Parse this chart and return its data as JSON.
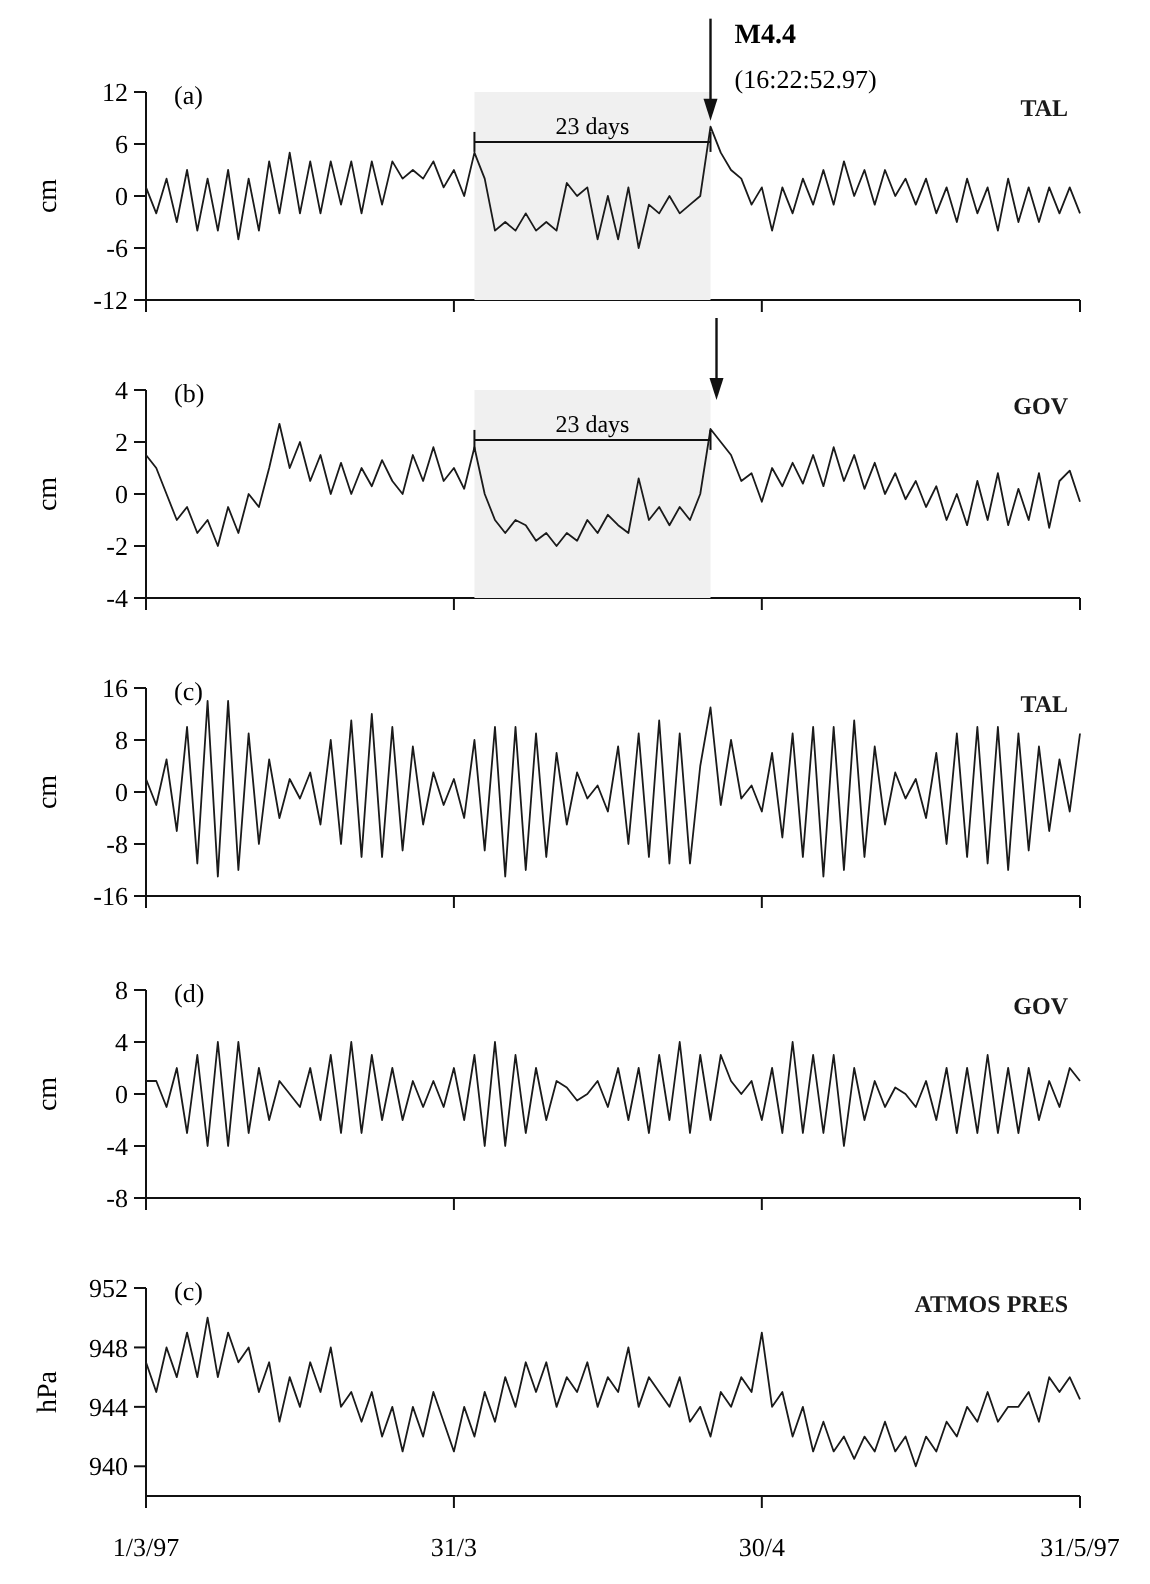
{
  "chart_data": [
    {
      "type": "line",
      "title": "(a)",
      "ylabel": "cm",
      "xlim": [
        "1997-03-01",
        "1997-05-31"
      ],
      "ylim": [
        -12,
        12
      ],
      "yticks": [
        -12,
        -6,
        0,
        6,
        12
      ],
      "tick_labels": "y",
      "legend": "top right",
      "x": [
        "1997-03-01",
        "1997-03-02",
        "1997-03-03",
        "1997-03-04",
        "1997-03-05",
        "1997-03-06",
        "1997-03-07",
        "1997-03-08",
        "1997-03-09",
        "1997-03-10",
        "1997-03-11",
        "1997-03-12",
        "1997-03-13",
        "1997-03-14",
        "1997-03-15",
        "1997-03-16",
        "1997-03-17",
        "1997-03-18",
        "1997-03-19",
        "1997-03-20",
        "1997-03-21",
        "1997-03-22",
        "1997-03-23",
        "1997-03-24",
        "1997-03-25",
        "1997-03-26",
        "1997-03-27",
        "1997-03-28",
        "1997-03-29",
        "1997-03-30",
        "1997-03-31",
        "1997-04-01",
        "1997-04-02",
        "1997-04-03",
        "1997-04-04",
        "1997-04-05",
        "1997-04-06",
        "1997-04-07",
        "1997-04-08",
        "1997-04-09",
        "1997-04-10",
        "1997-04-11",
        "1997-04-12",
        "1997-04-13",
        "1997-04-14",
        "1997-04-15",
        "1997-04-16",
        "1997-04-17",
        "1997-04-18",
        "1997-04-19",
        "1997-04-20",
        "1997-04-21",
        "1997-04-22",
        "1997-04-23",
        "1997-04-24",
        "1997-04-25",
        "1997-04-26",
        "1997-04-27",
        "1997-04-28",
        "1997-04-29",
        "1997-04-30",
        "1997-05-01",
        "1997-05-02",
        "1997-05-03",
        "1997-05-04",
        "1997-05-05",
        "1997-05-06",
        "1997-05-07",
        "1997-05-08",
        "1997-05-09",
        "1997-05-10",
        "1997-05-11",
        "1997-05-12",
        "1997-05-13",
        "1997-05-14",
        "1997-05-15",
        "1997-05-16",
        "1997-05-17",
        "1997-05-18",
        "1997-05-19",
        "1997-05-20",
        "1997-05-21",
        "1997-05-22",
        "1997-05-23",
        "1997-05-24",
        "1997-05-25",
        "1997-05-26",
        "1997-05-27",
        "1997-05-28",
        "1997-05-29",
        "1997-05-30",
        "1997-05-31"
      ],
      "xticks": [
        {
          "value": "1997-03-01",
          "label": null
        },
        {
          "value": "1997-03-31",
          "label": null
        },
        {
          "value": "1997-04-30",
          "label": null
        },
        {
          "value": "1997-05-31",
          "label": null
        }
      ],
      "annotations": [
        {
          "text": "M4.4",
          "x": "1997-04-25",
          "y": 8
        },
        "(16:22:52.97)"
      ],
      "bands": [
        {
          "axis": "x",
          "from": "1997-04-02",
          "to": "1997-04-25",
          "label": "23 days",
          "color": "#f0f0f0"
        }
      ],
      "series": [
        {
          "name": "TAL",
          "color": "#1a1a1a",
          "values": [
            1,
            -2,
            2,
            -3,
            3,
            -4,
            2,
            -4,
            3,
            -5,
            2,
            -4,
            4,
            -2,
            5,
            -2,
            4,
            -2,
            4,
            -1,
            4,
            -2,
            4,
            -1,
            4,
            2,
            3,
            2,
            4,
            1,
            3,
            0,
            5,
            2,
            -4,
            -3,
            -4,
            -2,
            -4,
            -3,
            -4,
            1.5,
            0,
            1,
            -5,
            0,
            -5,
            1,
            -6,
            -1,
            -2,
            0,
            -2,
            -1,
            0,
            8,
            5,
            3,
            2,
            -1,
            1,
            -4,
            1,
            -2,
            2,
            -1,
            3,
            -1,
            4,
            0,
            3,
            -1,
            3,
            0,
            2,
            -1,
            2,
            -2,
            1,
            -3,
            2,
            -2,
            1,
            -4,
            2,
            -3,
            1,
            -3,
            1,
            -2,
            1,
            -2
          ]
        }
      ]
    },
    {
      "type": "line",
      "title": "(b)",
      "ylabel": "cm",
      "xlim": [
        "1997-03-01",
        "1997-05-31"
      ],
      "ylim": [
        -4,
        4
      ],
      "yticks": [
        -4,
        -2,
        0,
        2,
        4
      ],
      "tick_labels": "y",
      "legend": "top right",
      "x": [
        "1997-03-01",
        "1997-03-02",
        "1997-03-03",
        "1997-03-04",
        "1997-03-05",
        "1997-03-06",
        "1997-03-07",
        "1997-03-08",
        "1997-03-09",
        "1997-03-10",
        "1997-03-11",
        "1997-03-12",
        "1997-03-13",
        "1997-03-14",
        "1997-03-15",
        "1997-03-16",
        "1997-03-17",
        "1997-03-18",
        "1997-03-19",
        "1997-03-20",
        "1997-03-21",
        "1997-03-22",
        "1997-03-23",
        "1997-03-24",
        "1997-03-25",
        "1997-03-26",
        "1997-03-27",
        "1997-03-28",
        "1997-03-29",
        "1997-03-30",
        "1997-03-31",
        "1997-04-01",
        "1997-04-02",
        "1997-04-03",
        "1997-04-04",
        "1997-04-05",
        "1997-04-06",
        "1997-04-07",
        "1997-04-08",
        "1997-04-09",
        "1997-04-10",
        "1997-04-11",
        "1997-04-12",
        "1997-04-13",
        "1997-04-14",
        "1997-04-15",
        "1997-04-16",
        "1997-04-17",
        "1997-04-18",
        "1997-04-19",
        "1997-04-20",
        "1997-04-21",
        "1997-04-22",
        "1997-04-23",
        "1997-04-24",
        "1997-04-25",
        "1997-04-26",
        "1997-04-27",
        "1997-04-28",
        "1997-04-29",
        "1997-04-30",
        "1997-05-01",
        "1997-05-02",
        "1997-05-03",
        "1997-05-04",
        "1997-05-05",
        "1997-05-06",
        "1997-05-07",
        "1997-05-08",
        "1997-05-09",
        "1997-05-10",
        "1997-05-11",
        "1997-05-12",
        "1997-05-13",
        "1997-05-14",
        "1997-05-15",
        "1997-05-16",
        "1997-05-17",
        "1997-05-18",
        "1997-05-19",
        "1997-05-20",
        "1997-05-21",
        "1997-05-22",
        "1997-05-23",
        "1997-05-24",
        "1997-05-25",
        "1997-05-26",
        "1997-05-27",
        "1997-05-28",
        "1997-05-29",
        "1997-05-30",
        "1997-05-31"
      ],
      "xticks": [
        {
          "value": "1997-03-01",
          "label": null
        },
        {
          "value": "1997-03-31",
          "label": null
        },
        {
          "value": "1997-04-30",
          "label": null
        },
        {
          "value": "1997-05-31",
          "label": null
        }
      ],
      "bands": [
        {
          "axis": "x",
          "from": "1997-04-02",
          "to": "1997-04-25",
          "label": "23 days",
          "color": "#f0f0f0"
        }
      ],
      "series": [
        {
          "name": "GOV",
          "color": "#1a1a1a",
          "values": [
            1.5,
            1,
            0,
            -1,
            -0.5,
            -1.5,
            -1,
            -2,
            -0.5,
            -1.5,
            0,
            -0.5,
            1,
            2.7,
            1,
            2,
            0.5,
            1.5,
            0,
            1.2,
            0,
            1,
            0.3,
            1.3,
            0.5,
            0,
            1.5,
            0.5,
            1.8,
            0.5,
            1,
            0.2,
            1.8,
            0,
            -1,
            -1.5,
            -1,
            -1.2,
            -1.8,
            -1.5,
            -2,
            -1.5,
            -1.8,
            -1,
            -1.5,
            -0.8,
            -1.2,
            -1.5,
            0.6,
            -1,
            -0.5,
            -1.2,
            -0.5,
            -1,
            0,
            2.5,
            2,
            1.5,
            0.5,
            0.8,
            -0.3,
            1,
            0.3,
            1.2,
            0.4,
            1.5,
            0.3,
            1.8,
            0.5,
            1.5,
            0.2,
            1.2,
            0,
            0.8,
            -0.2,
            0.5,
            -0.5,
            0.3,
            -1,
            0,
            -1.2,
            0.5,
            -1,
            0.8,
            -1.2,
            0.2,
            -1,
            0.8,
            -1.3,
            0.5,
            0.9,
            -0.3
          ]
        }
      ]
    },
    {
      "type": "line",
      "title": "(c)",
      "ylabel": "cm",
      "xlim": [
        "1997-03-01",
        "1997-05-31"
      ],
      "ylim": [
        -16,
        16
      ],
      "yticks": [
        -16,
        -8,
        0,
        8,
        16
      ],
      "tick_labels": "y",
      "legend": "top right",
      "x": [
        "1997-03-01",
        "1997-03-02",
        "1997-03-03",
        "1997-03-04",
        "1997-03-05",
        "1997-03-06",
        "1997-03-07",
        "1997-03-08",
        "1997-03-09",
        "1997-03-10",
        "1997-03-11",
        "1997-03-12",
        "1997-03-13",
        "1997-03-14",
        "1997-03-15",
        "1997-03-16",
        "1997-03-17",
        "1997-03-18",
        "1997-03-19",
        "1997-03-20",
        "1997-03-21",
        "1997-03-22",
        "1997-03-23",
        "1997-03-24",
        "1997-03-25",
        "1997-03-26",
        "1997-03-27",
        "1997-03-28",
        "1997-03-29",
        "1997-03-30",
        "1997-03-31",
        "1997-04-01",
        "1997-04-02",
        "1997-04-03",
        "1997-04-04",
        "1997-04-05",
        "1997-04-06",
        "1997-04-07",
        "1997-04-08",
        "1997-04-09",
        "1997-04-10",
        "1997-04-11",
        "1997-04-12",
        "1997-04-13",
        "1997-04-14",
        "1997-04-15",
        "1997-04-16",
        "1997-04-17",
        "1997-04-18",
        "1997-04-19",
        "1997-04-20",
        "1997-04-21",
        "1997-04-22",
        "1997-04-23",
        "1997-04-24",
        "1997-04-25",
        "1997-04-26",
        "1997-04-27",
        "1997-04-28",
        "1997-04-29",
        "1997-04-30",
        "1997-05-01",
        "1997-05-02",
        "1997-05-03",
        "1997-05-04",
        "1997-05-05",
        "1997-05-06",
        "1997-05-07",
        "1997-05-08",
        "1997-05-09",
        "1997-05-10",
        "1997-05-11",
        "1997-05-12",
        "1997-05-13",
        "1997-05-14",
        "1997-05-15",
        "1997-05-16",
        "1997-05-17",
        "1997-05-18",
        "1997-05-19",
        "1997-05-20",
        "1997-05-21",
        "1997-05-22",
        "1997-05-23",
        "1997-05-24",
        "1997-05-25",
        "1997-05-26",
        "1997-05-27",
        "1997-05-28",
        "1997-05-29",
        "1997-05-30",
        "1997-05-31"
      ],
      "xticks": [
        {
          "value": "1997-03-01",
          "label": null
        },
        {
          "value": "1997-03-31",
          "label": null
        },
        {
          "value": "1997-04-30",
          "label": null
        },
        {
          "value": "1997-05-31",
          "label": null
        }
      ],
      "series": [
        {
          "name": "TAL",
          "color": "#1a1a1a",
          "values": [
            2,
            -2,
            5,
            -6,
            10,
            -11,
            14,
            -13,
            14,
            -12,
            9,
            -8,
            5,
            -4,
            2,
            -1,
            3,
            -5,
            8,
            -8,
            11,
            -10,
            12,
            -10,
            10,
            -9,
            7,
            -5,
            3,
            -2,
            2,
            -4,
            8,
            -9,
            10,
            -13,
            10,
            -12,
            9,
            -10,
            6,
            -5,
            3,
            -1,
            1,
            -3,
            7,
            -8,
            9,
            -10,
            11,
            -11,
            9,
            -11,
            4,
            13,
            -2,
            8,
            -1,
            1,
            -3,
            6,
            -7,
            9,
            -10,
            10,
            -13,
            10,
            -12,
            11,
            -10,
            7,
            -5,
            3,
            -1,
            2,
            -4,
            6,
            -8,
            9,
            -10,
            10,
            -11,
            10,
            -12,
            9,
            -9,
            7,
            -6,
            5,
            -3,
            9
          ]
        }
      ]
    },
    {
      "type": "line",
      "title": "(d)",
      "ylabel": "cm",
      "xlim": [
        "1997-03-01",
        "1997-05-31"
      ],
      "ylim": [
        -8,
        8
      ],
      "yticks": [
        -8,
        -4,
        0,
        4,
        8
      ],
      "tick_labels": "y",
      "legend": "top right",
      "x": [
        "1997-03-01",
        "1997-03-02",
        "1997-03-03",
        "1997-03-04",
        "1997-03-05",
        "1997-03-06",
        "1997-03-07",
        "1997-03-08",
        "1997-03-09",
        "1997-03-10",
        "1997-03-11",
        "1997-03-12",
        "1997-03-13",
        "1997-03-14",
        "1997-03-15",
        "1997-03-16",
        "1997-03-17",
        "1997-03-18",
        "1997-03-19",
        "1997-03-20",
        "1997-03-21",
        "1997-03-22",
        "1997-03-23",
        "1997-03-24",
        "1997-03-25",
        "1997-03-26",
        "1997-03-27",
        "1997-03-28",
        "1997-03-29",
        "1997-03-30",
        "1997-03-31",
        "1997-04-01",
        "1997-04-02",
        "1997-04-03",
        "1997-04-04",
        "1997-04-05",
        "1997-04-06",
        "1997-04-07",
        "1997-04-08",
        "1997-04-09",
        "1997-04-10",
        "1997-04-11",
        "1997-04-12",
        "1997-04-13",
        "1997-04-14",
        "1997-04-15",
        "1997-04-16",
        "1997-04-17",
        "1997-04-18",
        "1997-04-19",
        "1997-04-20",
        "1997-04-21",
        "1997-04-22",
        "1997-04-23",
        "1997-04-24",
        "1997-04-25",
        "1997-04-26",
        "1997-04-27",
        "1997-04-28",
        "1997-04-29",
        "1997-04-30",
        "1997-05-01",
        "1997-05-02",
        "1997-05-03",
        "1997-05-04",
        "1997-05-05",
        "1997-05-06",
        "1997-05-07",
        "1997-05-08",
        "1997-05-09",
        "1997-05-10",
        "1997-05-11",
        "1997-05-12",
        "1997-05-13",
        "1997-05-14",
        "1997-05-15",
        "1997-05-16",
        "1997-05-17",
        "1997-05-18",
        "1997-05-19",
        "1997-05-20",
        "1997-05-21",
        "1997-05-22",
        "1997-05-23",
        "1997-05-24",
        "1997-05-25",
        "1997-05-26",
        "1997-05-27",
        "1997-05-28",
        "1997-05-29",
        "1997-05-30",
        "1997-05-31"
      ],
      "xticks": [
        {
          "value": "1997-03-01",
          "label": null
        },
        {
          "value": "1997-03-31",
          "label": null
        },
        {
          "value": "1997-04-30",
          "label": null
        },
        {
          "value": "1997-05-31",
          "label": null
        }
      ],
      "series": [
        {
          "name": "GOV",
          "color": "#1a1a1a",
          "values": [
            1,
            1,
            -1,
            2,
            -3,
            3,
            -4,
            4,
            -4,
            4,
            -3,
            2,
            -2,
            1,
            0,
            -1,
            2,
            -2,
            3,
            -3,
            4,
            -3,
            3,
            -2,
            2,
            -2,
            1,
            -1,
            1,
            -1,
            2,
            -2,
            3,
            -4,
            4,
            -4,
            3,
            -3,
            2,
            -2,
            1,
            0.5,
            -0.5,
            0,
            1,
            -1,
            2,
            -2,
            2,
            -3,
            3,
            -2,
            4,
            -3,
            3,
            -2,
            3,
            1,
            0,
            1,
            -2,
            2,
            -3,
            4,
            -3,
            3,
            -3,
            3,
            -4,
            2,
            -2,
            1,
            -1,
            0.5,
            0,
            -1,
            1,
            -2,
            2,
            -3,
            2,
            -3,
            3,
            -3,
            2,
            -3,
            2,
            -2,
            1,
            -1,
            2,
            1
          ]
        }
      ]
    },
    {
      "type": "line",
      "title": "(c)",
      "ylabel": "hPa",
      "xlim": [
        "1997-03-01",
        "1997-05-31"
      ],
      "ylim": [
        938,
        952
      ],
      "yticks": [
        940,
        944,
        948,
        952
      ],
      "legend": "top right",
      "x": [
        "1997-03-01",
        "1997-03-02",
        "1997-03-03",
        "1997-03-04",
        "1997-03-05",
        "1997-03-06",
        "1997-03-07",
        "1997-03-08",
        "1997-03-09",
        "1997-03-10",
        "1997-03-11",
        "1997-03-12",
        "1997-03-13",
        "1997-03-14",
        "1997-03-15",
        "1997-03-16",
        "1997-03-17",
        "1997-03-18",
        "1997-03-19",
        "1997-03-20",
        "1997-03-21",
        "1997-03-22",
        "1997-03-23",
        "1997-03-24",
        "1997-03-25",
        "1997-03-26",
        "1997-03-27",
        "1997-03-28",
        "1997-03-29",
        "1997-03-30",
        "1997-03-31",
        "1997-04-01",
        "1997-04-02",
        "1997-04-03",
        "1997-04-04",
        "1997-04-05",
        "1997-04-06",
        "1997-04-07",
        "1997-04-08",
        "1997-04-09",
        "1997-04-10",
        "1997-04-11",
        "1997-04-12",
        "1997-04-13",
        "1997-04-14",
        "1997-04-15",
        "1997-04-16",
        "1997-04-17",
        "1997-04-18",
        "1997-04-19",
        "1997-04-20",
        "1997-04-21",
        "1997-04-22",
        "1997-04-23",
        "1997-04-24",
        "1997-04-25",
        "1997-04-26",
        "1997-04-27",
        "1997-04-28",
        "1997-04-29",
        "1997-04-30",
        "1997-05-01",
        "1997-05-02",
        "1997-05-03",
        "1997-05-04",
        "1997-05-05",
        "1997-05-06",
        "1997-05-07",
        "1997-05-08",
        "1997-05-09",
        "1997-05-10",
        "1997-05-11",
        "1997-05-12",
        "1997-05-13",
        "1997-05-14",
        "1997-05-15",
        "1997-05-16",
        "1997-05-17",
        "1997-05-18",
        "1997-05-19",
        "1997-05-20",
        "1997-05-21",
        "1997-05-22",
        "1997-05-23",
        "1997-05-24",
        "1997-05-25",
        "1997-05-26",
        "1997-05-27",
        "1997-05-28",
        "1997-05-29",
        "1997-05-30",
        "1997-05-31"
      ],
      "xticks": [
        {
          "value": "1997-03-01",
          "label": "1/3/97"
        },
        {
          "value": "1997-03-31",
          "label": "31/3"
        },
        {
          "value": "1997-04-30",
          "label": "30/4"
        },
        {
          "value": "1997-05-31",
          "label": "31/5/97"
        }
      ],
      "series": [
        {
          "name": "ATMOS PRES",
          "color": "#1a1a1a",
          "values": [
            947,
            945,
            948,
            946,
            949,
            946,
            950,
            946,
            949,
            947,
            948,
            945,
            947,
            943,
            946,
            944,
            947,
            945,
            948,
            944,
            945,
            943,
            945,
            942,
            944,
            941,
            944,
            942,
            945,
            943,
            941,
            944,
            942,
            945,
            943,
            946,
            944,
            947,
            945,
            947,
            944,
            946,
            945,
            947,
            944,
            946,
            945,
            948,
            944,
            946,
            945,
            944,
            946,
            943,
            944,
            942,
            945,
            944,
            946,
            945,
            949,
            944,
            945,
            942,
            944,
            941,
            943,
            941,
            942,
            940.5,
            942,
            941,
            943,
            941,
            942,
            940,
            942,
            941,
            943,
            942,
            944,
            943,
            945,
            943,
            944,
            944,
            945,
            943,
            946,
            945,
            946,
            944.5
          ]
        }
      ]
    }
  ]
}
